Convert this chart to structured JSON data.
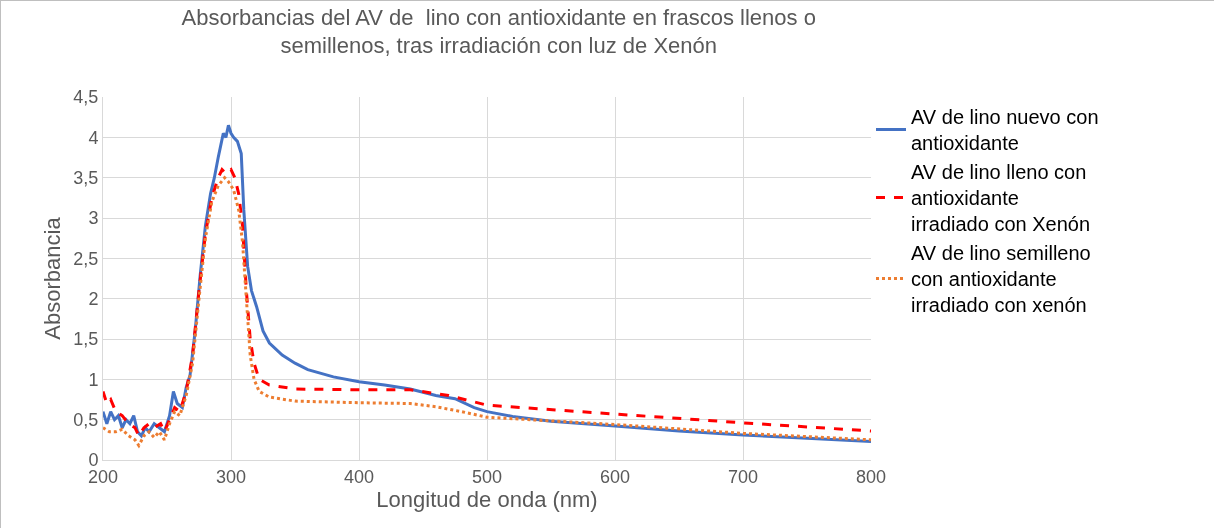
{
  "chart_data": {
    "type": "line",
    "title": "Absorbancias del AV de  lino con antioxidante en frascos llenos o semillenos, tras irradiación con luz de Xenón",
    "xlabel": "Longitud de onda (nm)",
    "ylabel": "Absorbancia",
    "xlim": [
      200,
      800
    ],
    "xticks": [
      200,
      300,
      400,
      500,
      600,
      700,
      800
    ],
    "ylim": [
      0,
      4.5
    ],
    "yticks": [
      0,
      {
        "value": 0.5,
        "label": "0,5"
      },
      1,
      {
        "value": 1.5,
        "label": "1,5"
      },
      2,
      {
        "value": 2.5,
        "label": "2,5"
      },
      3,
      {
        "value": 3.5,
        "label": "3,5"
      },
      4,
      {
        "value": 4.5,
        "label": "4,5"
      }
    ],
    "grid": true,
    "legend": "right",
    "marker": "none",
    "series": [
      {
        "name": "AV de lino nuevo con antioxidante",
        "color": "#4472c4",
        "line_style": "solid",
        "x": [
          200,
          203,
          206,
          209,
          212,
          215,
          218,
          221,
          224,
          227,
          230,
          233,
          236,
          240,
          244,
          248,
          252,
          255,
          258,
          262,
          265,
          268,
          272,
          276,
          280,
          284,
          287,
          290,
          292,
          294,
          296,
          298,
          300,
          302,
          305,
          308,
          310,
          313,
          316,
          320,
          325,
          330,
          340,
          350,
          360,
          380,
          400,
          420,
          440,
          460,
          475,
          490,
          500,
          520,
          550,
          600,
          650,
          700,
          750,
          800
        ],
        "values": [
          0.6,
          0.45,
          0.6,
          0.5,
          0.55,
          0.4,
          0.5,
          0.45,
          0.55,
          0.35,
          0.3,
          0.4,
          0.35,
          0.45,
          0.4,
          0.35,
          0.55,
          0.85,
          0.7,
          0.65,
          0.9,
          1.05,
          1.6,
          2.3,
          2.9,
          3.3,
          3.5,
          3.75,
          3.9,
          4.05,
          4.0,
          4.15,
          4.05,
          4.0,
          3.95,
          3.8,
          3.1,
          2.4,
          2.1,
          1.9,
          1.6,
          1.45,
          1.3,
          1.2,
          1.12,
          1.03,
          0.97,
          0.93,
          0.88,
          0.8,
          0.76,
          0.65,
          0.6,
          0.54,
          0.48,
          0.42,
          0.36,
          0.31,
          0.27,
          0.23
        ]
      },
      {
        "name": "AV de lino lleno con antioxidante irradiado con Xenón",
        "color": "#ff0000",
        "line_style": "dashed",
        "x": [
          200,
          203,
          206,
          210,
          215,
          220,
          225,
          228,
          232,
          236,
          240,
          245,
          248,
          252,
          256,
          260,
          265,
          270,
          275,
          280,
          285,
          290,
          293,
          296,
          300,
          303,
          306,
          309,
          312,
          315,
          318,
          322,
          330,
          350,
          400,
          440,
          470,
          490,
          500,
          600,
          700,
          800
        ],
        "values": [
          0.85,
          0.7,
          0.75,
          0.6,
          0.55,
          0.45,
          0.4,
          0.3,
          0.4,
          0.45,
          0.4,
          0.45,
          0.35,
          0.5,
          0.65,
          0.6,
          0.85,
          1.3,
          2.1,
          2.8,
          3.25,
          3.5,
          3.6,
          3.55,
          3.6,
          3.5,
          3.3,
          2.9,
          2.1,
          1.5,
          1.2,
          1.0,
          0.93,
          0.88,
          0.87,
          0.87,
          0.8,
          0.72,
          0.68,
          0.57,
          0.46,
          0.36
        ]
      },
      {
        "name": "AV de lino semilleno con antioxidante irradiado con xenón",
        "color": "#ed7d31",
        "line_style": "dotted",
        "x": [
          200,
          205,
          210,
          215,
          220,
          225,
          228,
          232,
          236,
          240,
          244,
          248,
          252,
          256,
          260,
          265,
          270,
          275,
          280,
          285,
          290,
          295,
          298,
          302,
          306,
          309,
          312,
          315,
          318,
          322,
          330,
          350,
          400,
          440,
          460,
          480,
          500,
          600,
          700,
          800
        ],
        "values": [
          0.4,
          0.35,
          0.35,
          0.38,
          0.3,
          0.25,
          0.18,
          0.3,
          0.35,
          0.28,
          0.35,
          0.25,
          0.45,
          0.6,
          0.55,
          0.8,
          1.2,
          2.0,
          2.75,
          3.2,
          3.4,
          3.5,
          3.45,
          3.35,
          3.1,
          2.7,
          2.0,
          1.3,
          1.0,
          0.85,
          0.78,
          0.73,
          0.71,
          0.7,
          0.66,
          0.6,
          0.53,
          0.44,
          0.33,
          0.25
        ]
      }
    ]
  }
}
